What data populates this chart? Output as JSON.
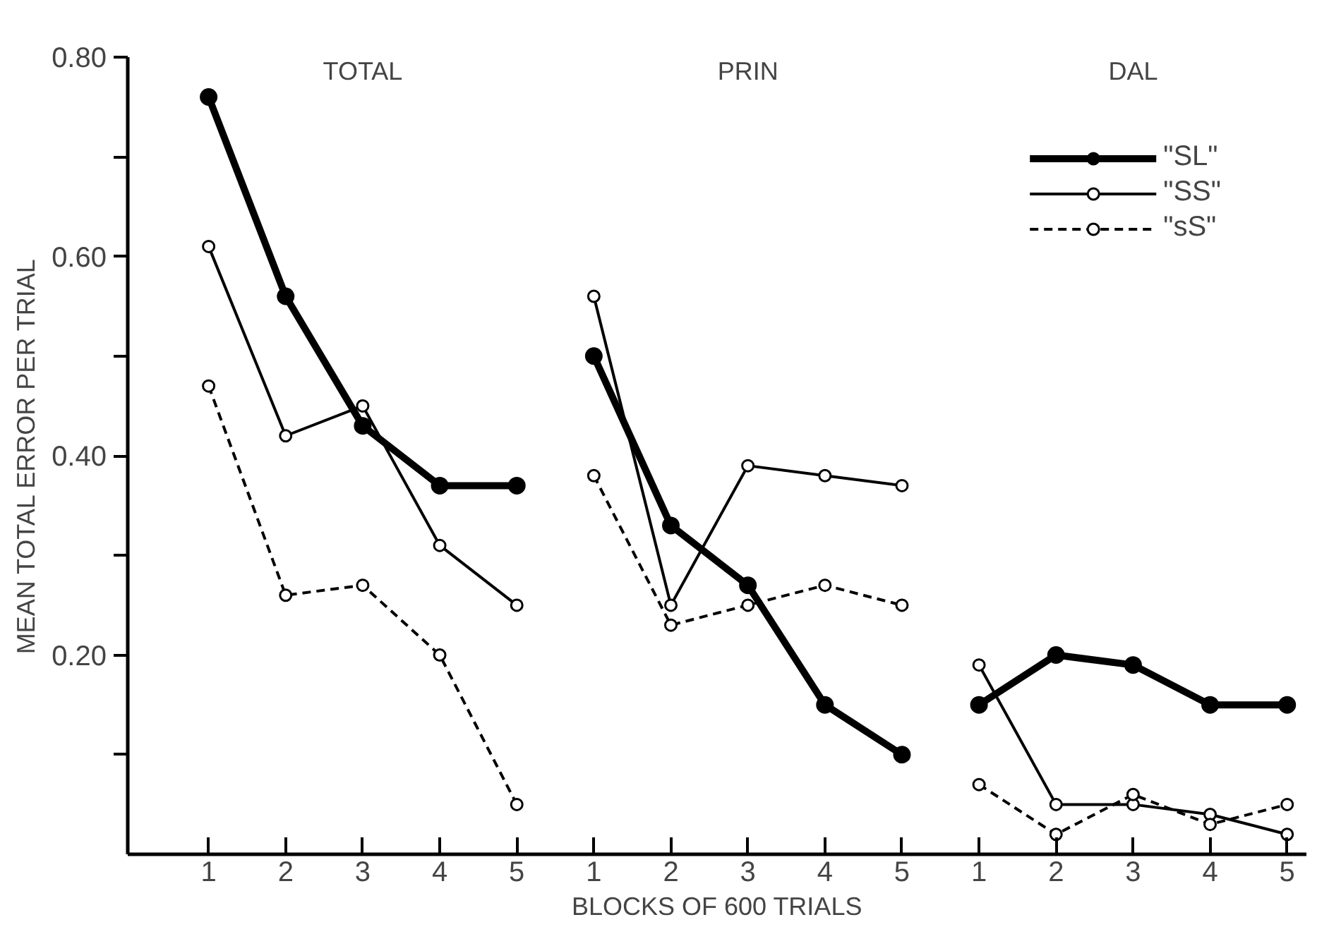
{
  "chart_data": {
    "type": "line",
    "xlabel": "BLOCKS OF 600 TRIALS",
    "ylabel": "MEAN TOTAL ERROR PER TRIAL",
    "annotations": [
      "TOTAL",
      "PRIN",
      "DAL"
    ],
    "categories": [
      "1",
      "2",
      "3",
      "4",
      "5",
      "1",
      "2",
      "3",
      "4",
      "5",
      "1",
      "2",
      "3",
      "4",
      "5"
    ],
    "ylim": [
      0,
      0.8
    ],
    "yticks": [
      {
        "value": 0.1,
        "label": null
      },
      {
        "value": 0.2,
        "label": "0.20"
      },
      {
        "value": 0.3,
        "label": null
      },
      {
        "value": 0.4,
        "label": "0.40"
      },
      {
        "value": 0.5,
        "label": null
      },
      {
        "value": 0.6,
        "label": "0.60"
      },
      {
        "value": 0.7,
        "label": null
      },
      {
        "value": 0.8,
        "label": "0.80"
      }
    ],
    "grid": false,
    "legend": "top right",
    "marker": "circle",
    "series": [
      {
        "name": "\"SL\"",
        "color": "#000000",
        "line_style": "solid",
        "values": [
          0.76,
          0.56,
          0.43,
          0.37,
          0.37,
          null,
          null,
          null,
          null,
          null,
          null,
          null,
          null,
          null,
          null
        ]
      },
      {
        "name": "\"SS\"",
        "color": "#000000",
        "line_style": "solid",
        "values": [
          0.61,
          0.42,
          0.45,
          0.31,
          0.25,
          null,
          null,
          null,
          null,
          null,
          null,
          null,
          null,
          null,
          null
        ]
      },
      {
        "name": "\"sS\"",
        "color": "#000000",
        "line_style": "dashed",
        "values": [
          0.47,
          0.26,
          0.27,
          0.2,
          0.05,
          null,
          null,
          null,
          null,
          null,
          null,
          null,
          null,
          null,
          null
        ]
      },
      {
        "color": "#000000",
        "line_style": "solid",
        "values": [
          null,
          null,
          null,
          null,
          null,
          0.5,
          0.33,
          0.27,
          0.15,
          0.1,
          null,
          null,
          null,
          null,
          null
        ]
      },
      {
        "color": "#000000",
        "line_style": "solid",
        "values": [
          null,
          null,
          null,
          null,
          null,
          0.56,
          0.25,
          0.39,
          0.38,
          0.37,
          null,
          null,
          null,
          null,
          null
        ]
      },
      {
        "color": "#000000",
        "line_style": "dashed",
        "values": [
          null,
          null,
          null,
          null,
          null,
          0.38,
          0.23,
          0.25,
          0.27,
          0.25,
          null,
          null,
          null,
          null,
          null
        ]
      },
      {
        "color": "#000000",
        "line_style": "solid",
        "values": [
          null,
          null,
          null,
          null,
          null,
          null,
          null,
          null,
          null,
          null,
          0.15,
          0.2,
          0.19,
          0.15,
          0.15
        ]
      },
      {
        "color": "#000000",
        "line_style": "solid",
        "values": [
          null,
          null,
          null,
          null,
          null,
          null,
          null,
          null,
          null,
          null,
          0.19,
          0.05,
          0.05,
          0.04,
          0.02
        ]
      },
      {
        "color": "#000000",
        "line_style": "dashed",
        "values": [
          null,
          null,
          null,
          null,
          null,
          null,
          null,
          null,
          null,
          null,
          0.07,
          0.02,
          0.06,
          0.03,
          0.05
        ]
      }
    ]
  }
}
